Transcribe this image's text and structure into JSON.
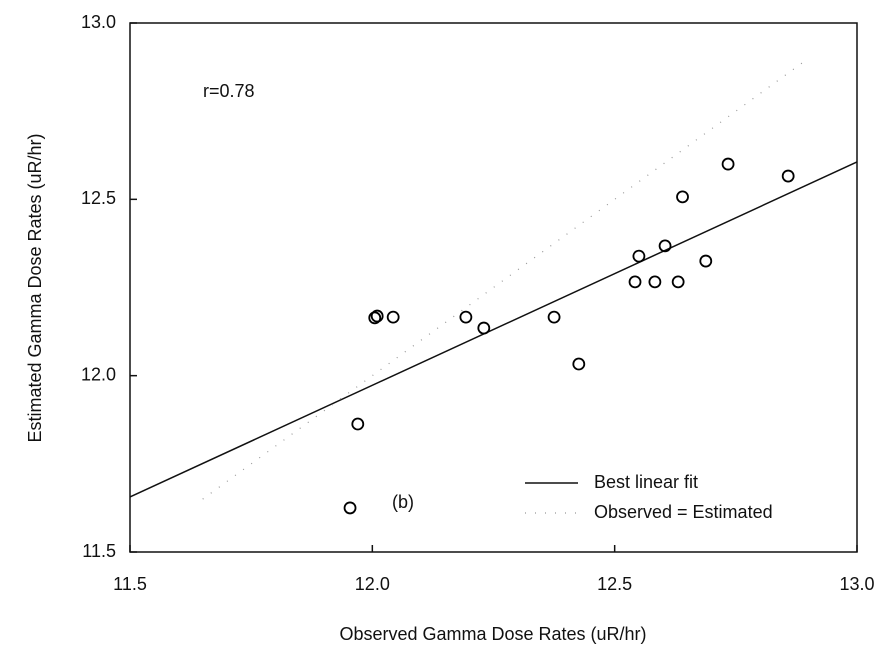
{
  "chart_data": {
    "type": "scatter",
    "xlabel": "Observed Gamma Dose Rates (uR/hr)",
    "ylabel": "Estimated Gamma Dose Rates (uR/hr)",
    "annotations": [
      "r=0.78",
      "(b)"
    ],
    "x": [
      11.954,
      11.97,
      12.005,
      12.01,
      12.043,
      12.193,
      12.23,
      12.375,
      12.426,
      12.542,
      12.55,
      12.583,
      12.604,
      12.631,
      12.64,
      12.688,
      12.734,
      12.858
    ],
    "values": [
      11.625,
      11.863,
      12.164,
      12.169,
      12.166,
      12.166,
      12.135,
      12.166,
      12.033,
      12.266,
      12.339,
      12.266,
      12.368,
      12.266,
      12.507,
      12.325,
      12.6,
      12.566
    ],
    "color": "#000000",
    "lines": [
      {
        "name": "Best linear fit",
        "x": [
          11.5,
          13.0
        ],
        "values": [
          11.656,
          12.606
        ],
        "dashed": false
      },
      {
        "name": "Observed = Estimated",
        "x": [
          11.65,
          12.9
        ],
        "values": [
          11.65,
          12.9
        ],
        "dashed": true
      }
    ],
    "xlim": [
      11.5,
      13.0
    ],
    "xticks": [
      11.5,
      {
        "value": 12.0,
        "label": "12.0"
      },
      12.5,
      {
        "value": 13.0,
        "label": "13.0"
      }
    ],
    "ylim": [
      11.5,
      13.0
    ],
    "yticks": [
      11.5,
      {
        "value": 12.0,
        "label": "12.0"
      },
      12.5,
      {
        "value": 13.0,
        "label": "13.0"
      }
    ],
    "legend": "lower right"
  }
}
